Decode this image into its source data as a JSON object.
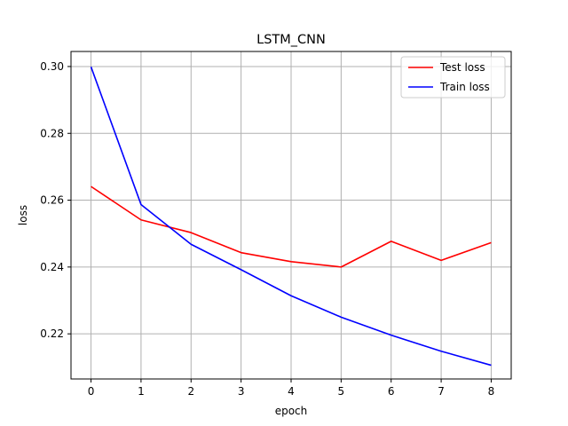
{
  "chart_data": {
    "type": "line",
    "title": "LSTM_CNN",
    "xlabel": "epoch",
    "ylabel": "loss",
    "x": [
      0,
      1,
      2,
      3,
      4,
      5,
      6,
      7,
      8
    ],
    "xlim": [
      -0.4,
      8.4
    ],
    "ylim": [
      0.2065,
      0.3045
    ],
    "xticks": [
      "0",
      "1",
      "2",
      "3",
      "4",
      "5",
      "6",
      "7",
      "8"
    ],
    "yticks": [
      {
        "value": 0.22,
        "label": "0.22"
      },
      {
        "value": 0.24,
        "label": "0.24"
      },
      {
        "value": 0.26,
        "label": "0.26"
      },
      {
        "value": 0.28,
        "label": "0.28"
      },
      {
        "value": 0.3,
        "label": "0.30"
      }
    ],
    "grid": true,
    "legend_position": "top-right",
    "series": [
      {
        "name": "Test loss",
        "color": "#ff0000",
        "values": [
          0.2641,
          0.2541,
          0.2503,
          0.2443,
          0.2416,
          0.24,
          0.2477,
          0.242,
          0.2473
        ]
      },
      {
        "name": "Train loss",
        "color": "#0000ff",
        "values": [
          0.2999,
          0.2587,
          0.2468,
          0.2392,
          0.2314,
          0.225,
          0.2196,
          0.2148,
          0.2106
        ]
      }
    ]
  }
}
